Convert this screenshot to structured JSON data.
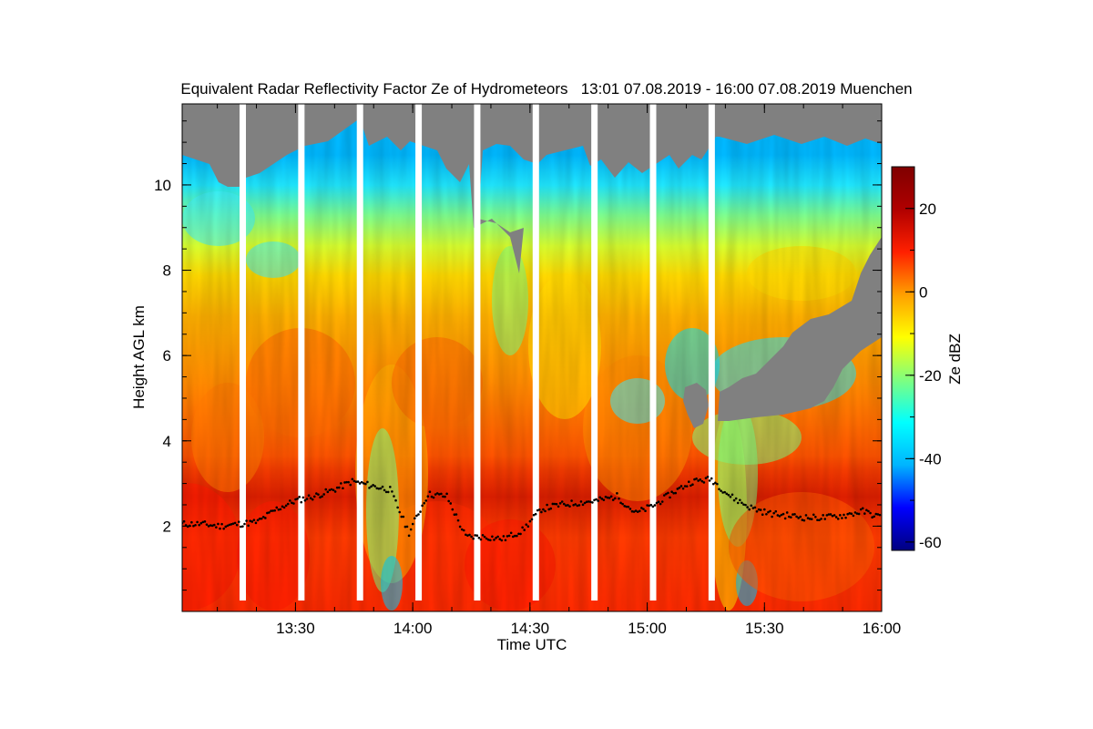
{
  "chart_data": {
    "type": "heatmap",
    "title": "Equivalent Radar Reflectivity Factor Ze of Hydrometeors",
    "time_range": "13:01 07.08.2019 - 16:00 07.08.2019",
    "location": "Muenchen",
    "xlabel": "Time UTC",
    "ylabel": "Height AGL km",
    "x_ticks": [
      "13:30",
      "14:00",
      "14:30",
      "15:00",
      "15:30",
      "16:00"
    ],
    "x_tick_minutes": [
      30,
      60,
      90,
      120,
      150,
      180
    ],
    "x_range_minutes": [
      1,
      180
    ],
    "y_ticks": [
      2,
      4,
      6,
      8,
      10
    ],
    "y_range_km": [
      0,
      11.9
    ],
    "colorbar": {
      "label": "Ze dBZ",
      "range": [
        -62,
        30
      ],
      "ticks": [
        20,
        0,
        -20,
        -40,
        -60
      ],
      "colormap": [
        "#00007f",
        "#0000ff",
        "#00b4ff",
        "#00ffff",
        "#7fff7f",
        "#ffff00",
        "#ff9f00",
        "#ff2000",
        "#b00000",
        "#7f0000"
      ]
    },
    "data_gaps_minutes": [
      16.5,
      31.5,
      46.5,
      61.5,
      76.5,
      91.5,
      106.5,
      121.5,
      136.5
    ],
    "no_data_color": "#808080",
    "cloud_base_km": [
      2.05,
      2.05,
      2.0,
      2.05,
      2.1,
      2.4,
      2.6,
      2.7,
      2.85,
      3.05,
      2.95,
      2.85,
      1.85,
      2.75,
      2.7,
      1.75,
      1.75,
      1.7,
      1.9,
      2.4,
      2.5,
      2.55,
      2.6,
      2.7,
      2.3,
      2.5,
      2.8,
      3.05,
      3.1,
      2.7,
      2.45,
      2.3,
      2.25,
      2.2,
      2.2,
      2.25,
      2.35,
      2.2
    ]
  }
}
